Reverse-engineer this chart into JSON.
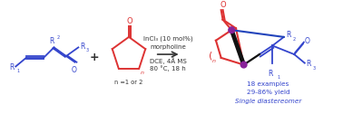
{
  "background_color": "#ffffff",
  "figsize": [
    3.78,
    1.26
  ],
  "dpi": 100,
  "blue": "#3344cc",
  "red": "#dd3333",
  "dark": "#333333",
  "black": "#111111",
  "purple": "#882299",
  "conditions": {
    "line1": "InCl₃ (10 mol%)",
    "line2": "morpholine",
    "line3": "DCE, 4Å MS",
    "line4": "80 °C, 18 h"
  },
  "product_labels": [
    {
      "text": "18 examples",
      "style": "normal"
    },
    {
      "text": "29-86% yield",
      "style": "normal"
    },
    {
      "text": "Single diastereomer",
      "style": "italic"
    }
  ]
}
